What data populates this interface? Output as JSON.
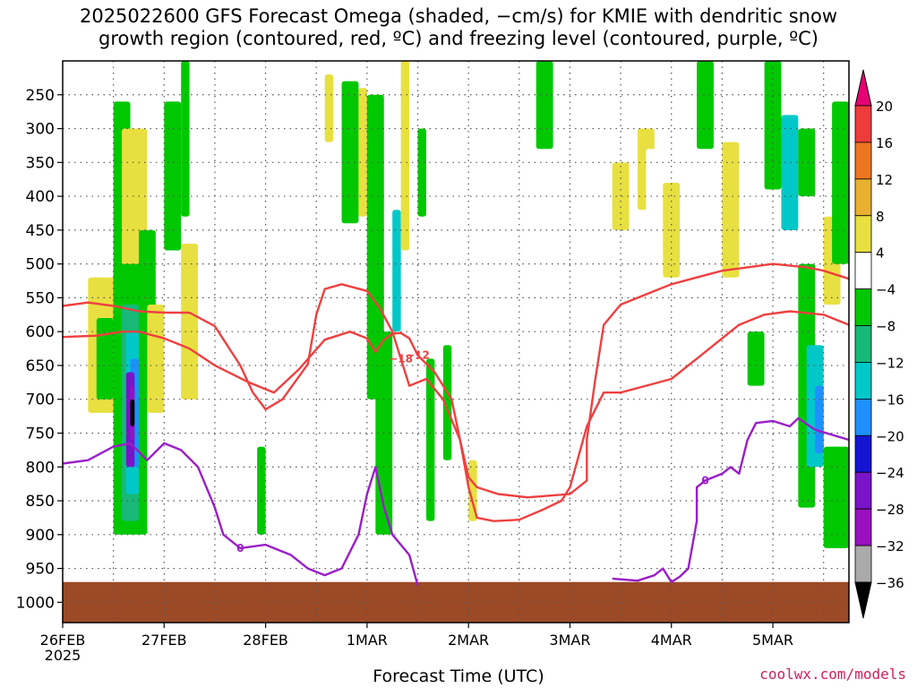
{
  "title_line1": "2025022600 GFS Forecast Omega (shaded, −cm/s) for KMIE with dendritic snow",
  "title_line2": "growth region (contoured, red, ºC) and freezing level (contoured, purple, ºC)",
  "credit": "coolwx.com/models",
  "chart_data": {
    "type": "heatmap",
    "title": "2025022600 GFS Forecast Omega (shaded, −cm/s) for KMIE with dendritic snow growth region (contoured, red, ºC) and freezing level (contoured, purple, ºC)",
    "xlabel": "Forecast Time (UTC)",
    "ylabel": "",
    "x_ticks": [
      "26FEB",
      "27FEB",
      "28FEB",
      "1MAR",
      "2MAR",
      "3MAR",
      "4MAR",
      "5MAR"
    ],
    "x_tick_sub": "2025",
    "x_tick_hours": [
      0,
      24,
      48,
      72,
      96,
      120,
      144,
      168
    ],
    "x_range_hours": [
      0,
      186
    ],
    "y_ticks": [
      250,
      300,
      350,
      400,
      450,
      500,
      550,
      600,
      650,
      700,
      750,
      800,
      850,
      900,
      950,
      1000
    ],
    "y_range_hpa": [
      200,
      1030
    ],
    "grid": true,
    "colorbar": {
      "labels": [
        "20",
        "16",
        "12",
        "8",
        "4",
        "−4",
        "−8",
        "−12",
        "−16",
        "−20",
        "−24",
        "−28",
        "−32",
        "−36"
      ],
      "colors": [
        "#e60073",
        "#ee3b3b",
        "#ee7621",
        "#e8b030",
        "#e8e040",
        "#ffffff",
        "#00c800",
        "#18b878",
        "#00c8c8",
        "#1e90ff",
        "#1414d2",
        "#7a14c8",
        "#9a10c0",
        "#aaaaaa",
        "#000000"
      ]
    },
    "contours": {
      "dgz_red": [
        {
          "label": "−18",
          "points": [
            [
              0,
              562
            ],
            [
              6,
              557
            ],
            [
              12,
              562
            ],
            [
              18,
              570
            ],
            [
              24,
              572
            ],
            [
              30,
              572
            ],
            [
              36,
              592
            ],
            [
              42,
              650
            ],
            [
              45,
              690
            ],
            [
              48,
              715
            ],
            [
              52,
              700
            ],
            [
              58,
              648
            ],
            [
              60,
              575
            ],
            [
              62,
              537
            ],
            [
              66,
              530
            ],
            [
              72,
              540
            ],
            [
              75,
              565
            ],
            [
              78,
              600
            ],
            [
              80,
              640
            ],
            [
              82,
              680
            ],
            [
              86,
              670
            ],
            [
              90,
              700
            ],
            [
              94,
              760
            ],
            [
              96,
              815
            ],
            [
              98,
              830
            ],
            [
              103,
              840
            ],
            [
              110,
              845
            ],
            [
              120,
              840
            ],
            [
              124,
              820
            ],
            [
              124,
              760
            ],
            [
              126,
              670
            ],
            [
              128,
              590
            ],
            [
              132,
              560
            ],
            [
              138,
              545
            ],
            [
              144,
              530
            ],
            [
              150,
              520
            ],
            [
              156,
              510
            ],
            [
              162,
              505
            ],
            [
              168,
              500
            ],
            [
              176,
              505
            ],
            [
              180,
              510
            ],
            [
              186,
              522
            ]
          ]
        },
        {
          "label": "−12",
          "points": [
            [
              0,
              608
            ],
            [
              8,
              606
            ],
            [
              14,
              600
            ],
            [
              18,
              600
            ],
            [
              24,
              610
            ],
            [
              30,
              625
            ],
            [
              36,
              650
            ],
            [
              44,
              675
            ],
            [
              50,
              690
            ],
            [
              56,
              655
            ],
            [
              62,
              612
            ],
            [
              68,
              600
            ],
            [
              72,
              610
            ],
            [
              74,
              630
            ],
            [
              76,
              612
            ],
            [
              78,
              603
            ],
            [
              80,
              602
            ],
            [
              82,
              610
            ],
            [
              84,
              635
            ],
            [
              88,
              660
            ],
            [
              92,
              700
            ],
            [
              94,
              760
            ],
            [
              96,
              830
            ],
            [
              98,
              875
            ],
            [
              102,
              880
            ],
            [
              108,
              878
            ],
            [
              114,
              862
            ],
            [
              118,
              850
            ],
            [
              120,
              830
            ],
            [
              124,
              740
            ],
            [
              128,
              690
            ],
            [
              132,
              690
            ],
            [
              138,
              680
            ],
            [
              144,
              670
            ],
            [
              150,
              640
            ],
            [
              156,
              610
            ],
            [
              160,
              590
            ],
            [
              166,
              575
            ],
            [
              172,
              570
            ],
            [
              180,
              575
            ],
            [
              186,
              590
            ]
          ]
        }
      ],
      "freezing_purple": [
        {
          "label": "0",
          "points": [
            [
              0,
              795
            ],
            [
              6,
              790
            ],
            [
              12,
              770
            ],
            [
              16,
              765
            ],
            [
              20,
              790
            ],
            [
              24,
              765
            ],
            [
              28,
              775
            ],
            [
              32,
              800
            ],
            [
              34,
              830
            ],
            [
              36,
              860
            ],
            [
              38,
              900
            ],
            [
              42,
              920
            ],
            [
              48,
              915
            ],
            [
              54,
              930
            ],
            [
              58,
              950
            ],
            [
              62,
              960
            ],
            [
              64,
              955
            ],
            [
              66,
              950
            ],
            [
              70,
              900
            ],
            [
              72,
              840
            ],
            [
              74,
              800
            ],
            [
              76,
              860
            ],
            [
              78,
              900
            ],
            [
              82,
              930
            ],
            [
              84,
              975
            ]
          ]
        },
        {
          "label": "0",
          "points": [
            [
              130,
              965
            ],
            [
              136,
              968
            ],
            [
              140,
              960
            ],
            [
              142,
              950
            ],
            [
              144,
              970
            ],
            [
              146,
              962
            ],
            [
              148,
              950
            ],
            [
              150,
              880
            ],
            [
              150,
              830
            ],
            [
              152,
              820
            ],
            [
              156,
              810
            ],
            [
              158,
              800
            ],
            [
              160,
              810
            ],
            [
              162,
              760
            ],
            [
              164,
              735
            ],
            [
              168,
              732
            ],
            [
              172,
              740
            ],
            [
              174,
              728
            ],
            [
              178,
              745
            ],
            [
              186,
              760
            ]
          ]
        }
      ]
    },
    "ground_hpa": 970
  }
}
